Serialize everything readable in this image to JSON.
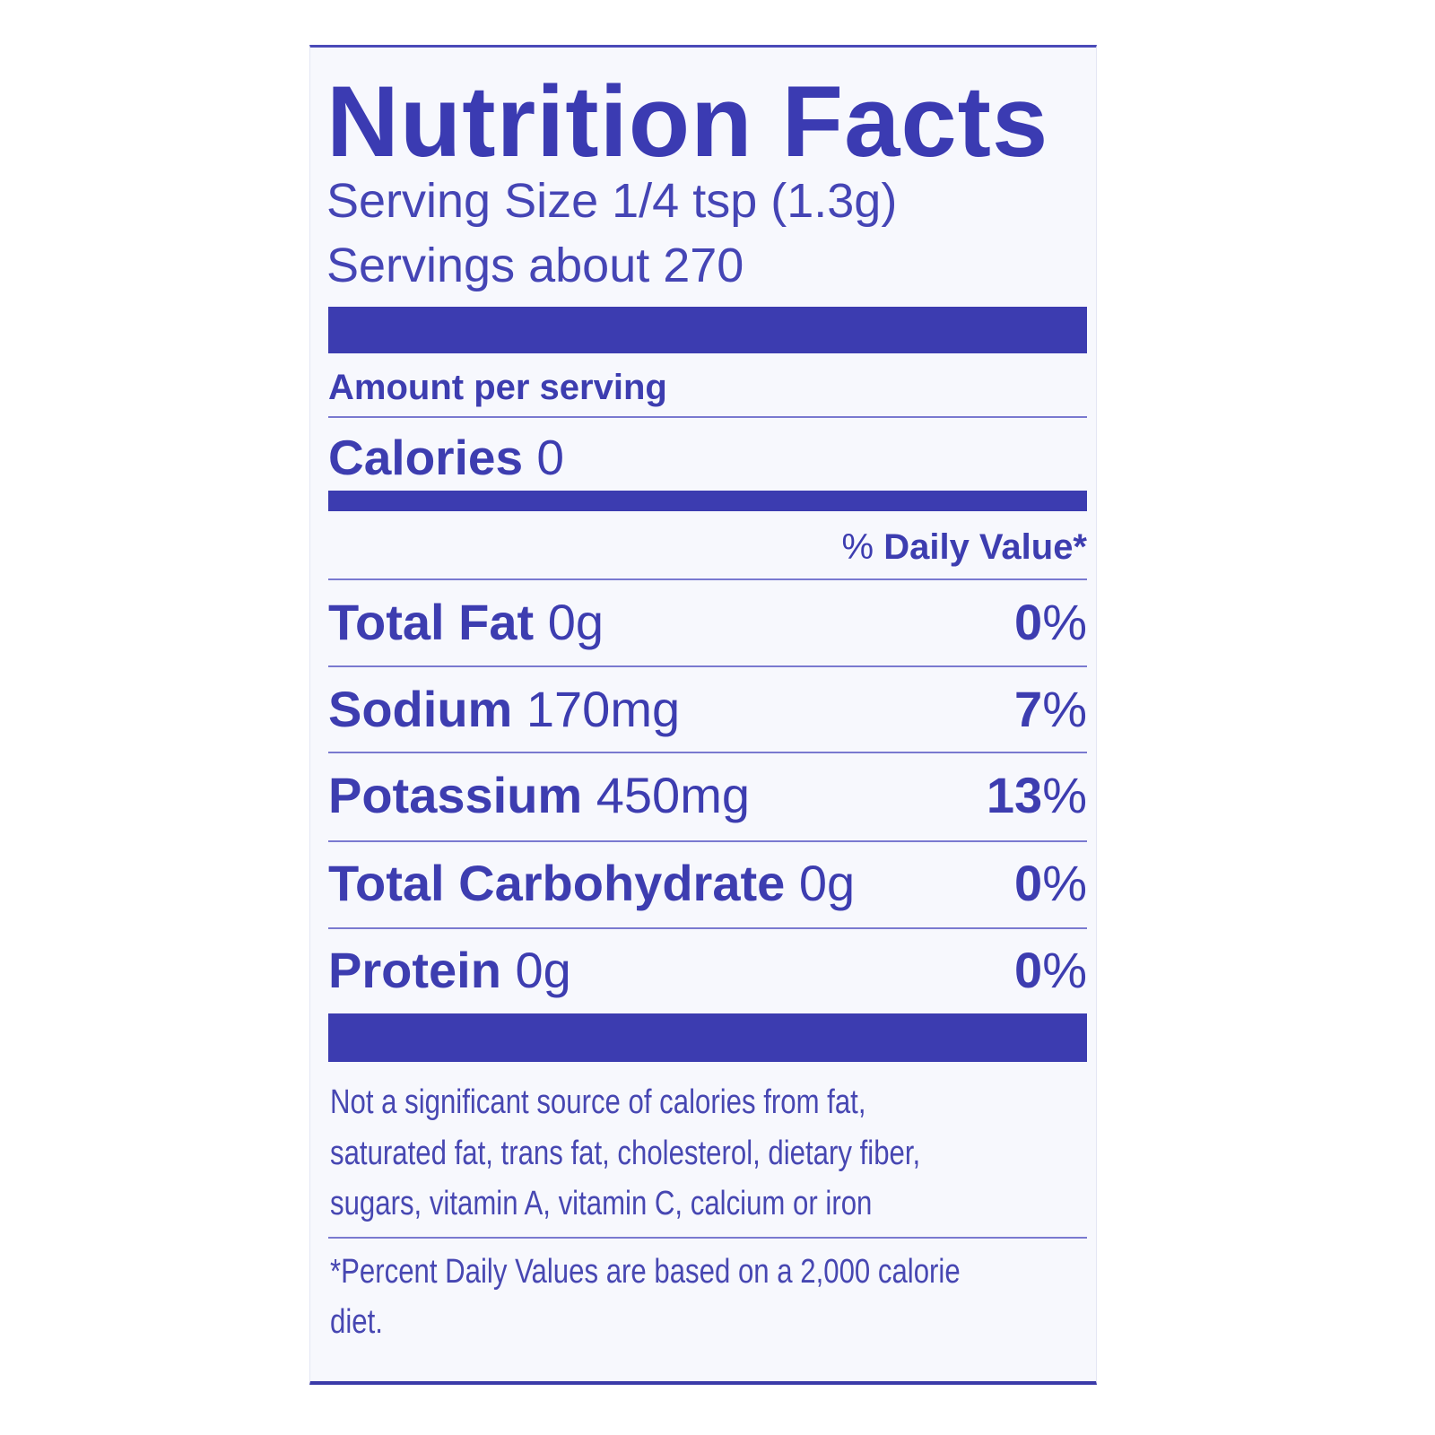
{
  "title": "Nutrition Facts",
  "serving_size": "Serving Size 1/4 tsp (1.3g)",
  "servings": "Servings about 270",
  "amount_per_serving": "Amount per serving",
  "calories": {
    "label": "Calories",
    "value": "0"
  },
  "daily_value_header": {
    "prefix": "%",
    "label": "Daily Value*"
  },
  "nutrients": [
    {
      "name": "Total Fat",
      "amount": "0g",
      "dv": "0",
      "pct": "%"
    },
    {
      "name": "Sodium",
      "amount": "170mg",
      "dv": "7",
      "pct": "%"
    },
    {
      "name": "Potassium",
      "amount": "450mg",
      "dv": "13",
      "pct": "%"
    },
    {
      "name": "Total Carbohydrate",
      "amount": "0g",
      "dv": "0",
      "pct": "%"
    },
    {
      "name": "Protein",
      "amount": "0g",
      "dv": "0",
      "pct": "%"
    }
  ],
  "footnote_lines": [
    "Not a significant source of calories from fat,",
    "saturated fat, trans fat, cholesterol, dietary fiber,",
    "sugars, vitamin A, vitamin C, calcium or iron"
  ],
  "dv_note_lines": [
    "*Percent Daily Values are based on a 2,000 calorie",
    "diet."
  ],
  "colors": {
    "ink": "#3d3db0",
    "background": "#f7f8fd"
  }
}
